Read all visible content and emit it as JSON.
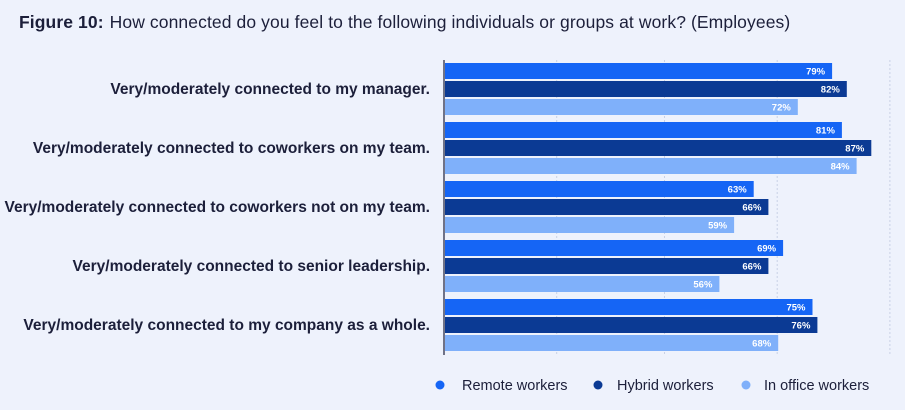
{
  "header": {
    "figure_label": "Figure 10:",
    "title": "How connected do you feel to the following individuals or groups at work? (Employees)"
  },
  "chart_data": {
    "type": "bar",
    "orientation": "horizontal",
    "title": "How connected do you feel to the following individuals or groups at work? (Employees)",
    "categories": [
      "Very/moderately connected to my manager.",
      "Very/moderately connected to coworkers on my team.",
      "Very/moderately connected to coworkers not on my team.",
      "Very/moderately connected to senior leadership.",
      "Very/moderately connected to my company as a whole."
    ],
    "series": [
      {
        "name": "Remote workers",
        "color": "#1565f5",
        "values": [
          79,
          81,
          63,
          69,
          75
        ]
      },
      {
        "name": "Hybrid workers",
        "color": "#0b3a94",
        "values": [
          82,
          87,
          66,
          66,
          76
        ]
      },
      {
        "name": "In office workers",
        "color": "#7fb0fa",
        "values": [
          72,
          84,
          59,
          56,
          68
        ]
      }
    ],
    "value_suffix": "%",
    "xlim": [
      0,
      100
    ],
    "grid": true,
    "legend_position": "bottom-right",
    "xlabel": "",
    "ylabel": ""
  }
}
